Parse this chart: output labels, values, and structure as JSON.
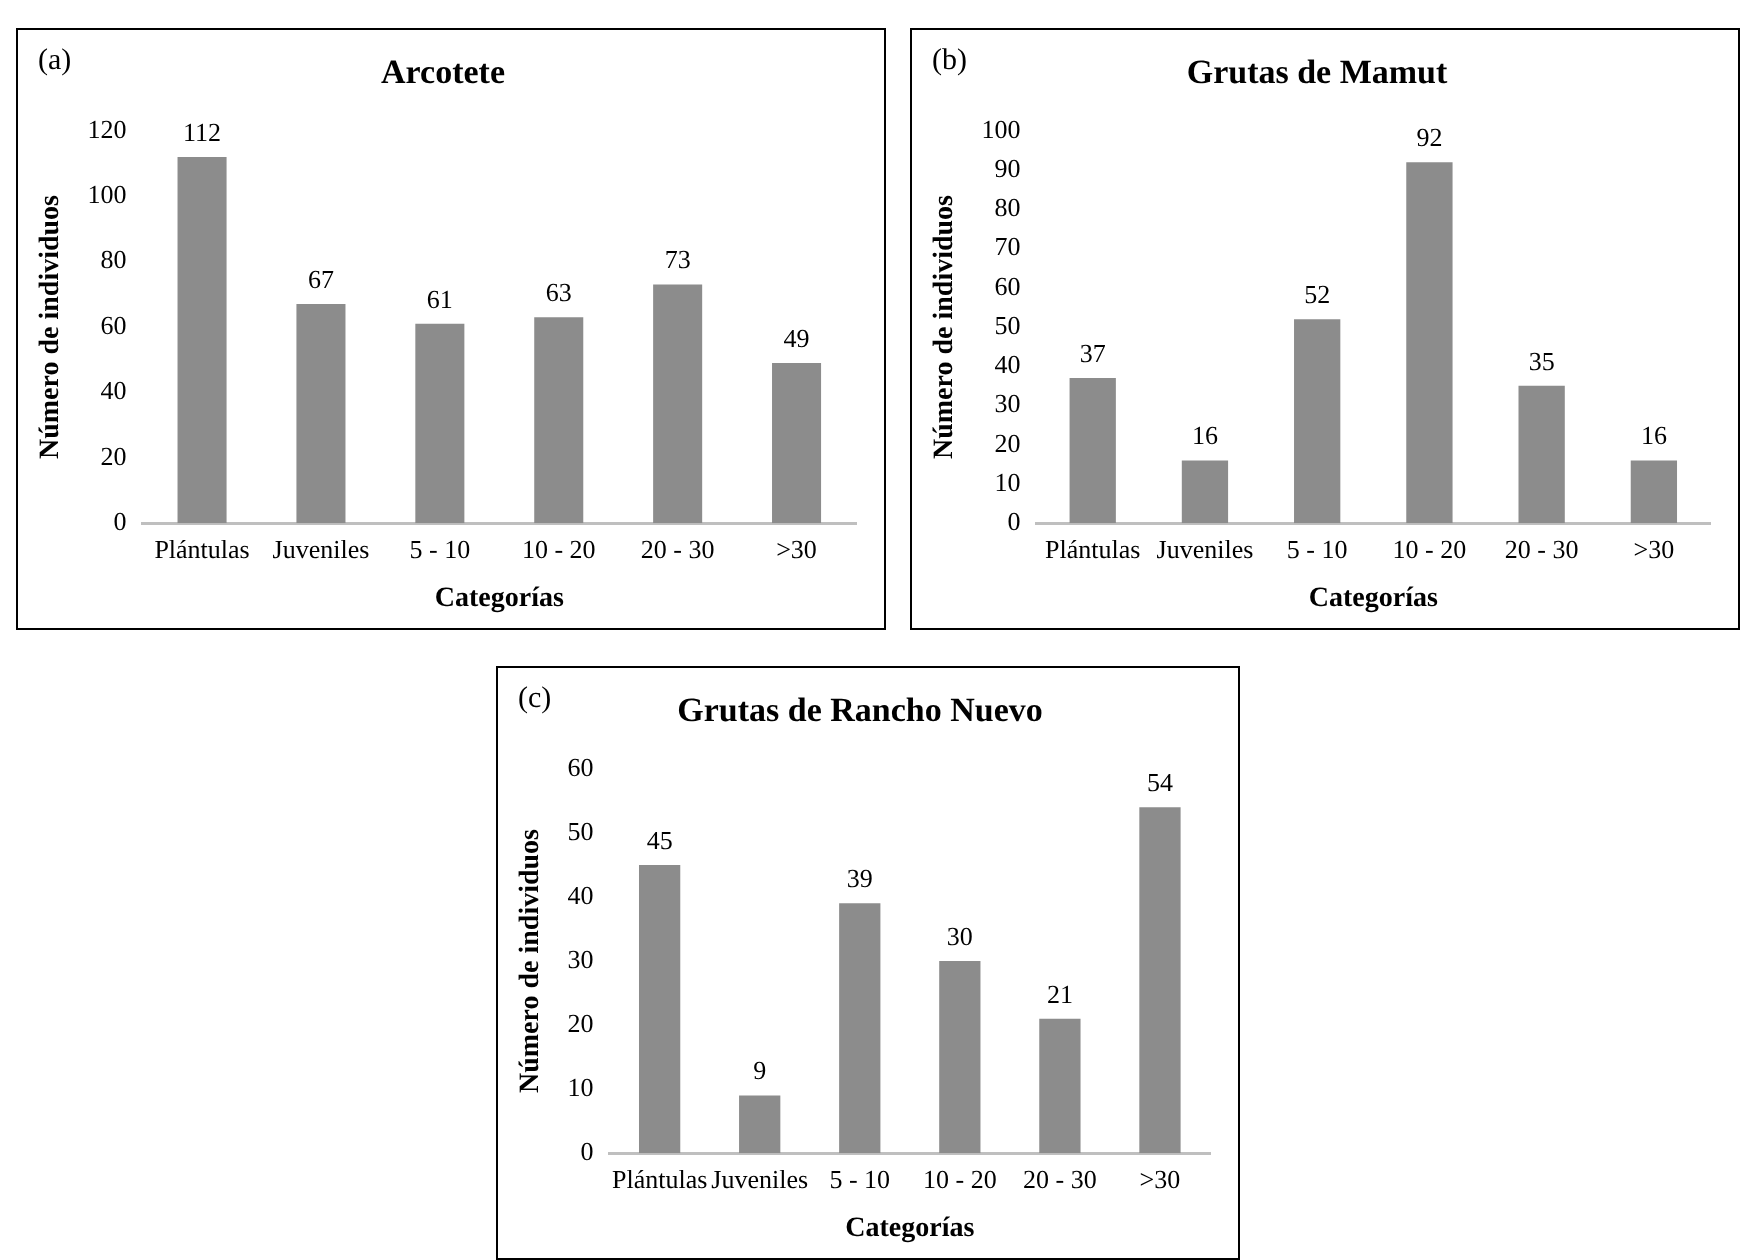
{
  "chart_data": [
    {
      "type": "bar",
      "title": "Arcotete",
      "annotations": [
        "(a)"
      ],
      "xlabel": "Categorías",
      "ylabel": "Número de individuos",
      "categories": [
        "Plántulas",
        "Juveniles",
        "5 - 10",
        "10 - 20",
        "20 - 30",
        ">30"
      ],
      "values": [
        112,
        67,
        61,
        63,
        73,
        49
      ],
      "color": "#8c8c8c",
      "ylim": [
        0,
        120
      ],
      "yticks": [
        0,
        20,
        40,
        60,
        80,
        100,
        120
      ],
      "grid": false,
      "legend": false,
      "data_labels": true
    },
    {
      "type": "bar",
      "title": "Grutas de Mamut",
      "annotations": [
        "(b)"
      ],
      "xlabel": "Categorías",
      "ylabel": "Número de individuos",
      "categories": [
        "Plántulas",
        "Juveniles",
        "5 - 10",
        "10 - 20",
        "20 - 30",
        ">30"
      ],
      "values": [
        37,
        16,
        52,
        92,
        35,
        16
      ],
      "color": "#8c8c8c",
      "ylim": [
        0,
        100
      ],
      "yticks": [
        0,
        10,
        20,
        30,
        40,
        50,
        60,
        70,
        80,
        90,
        100
      ],
      "grid": false,
      "legend": false,
      "data_labels": true
    },
    {
      "type": "bar",
      "title": "Grutas de Rancho Nuevo",
      "annotations": [
        "(c)"
      ],
      "xlabel": "Categorías",
      "ylabel": "Número de individuos",
      "categories": [
        "Plántulas",
        "Juveniles",
        "5 - 10",
        "10 - 20",
        "20 - 30",
        ">30"
      ],
      "values": [
        45,
        9,
        39,
        30,
        21,
        54
      ],
      "color": "#8c8c8c",
      "ylim": [
        0,
        60
      ],
      "yticks": [
        0,
        10,
        20,
        30,
        40,
        50,
        60
      ],
      "grid": false,
      "legend": false,
      "data_labels": true
    }
  ]
}
